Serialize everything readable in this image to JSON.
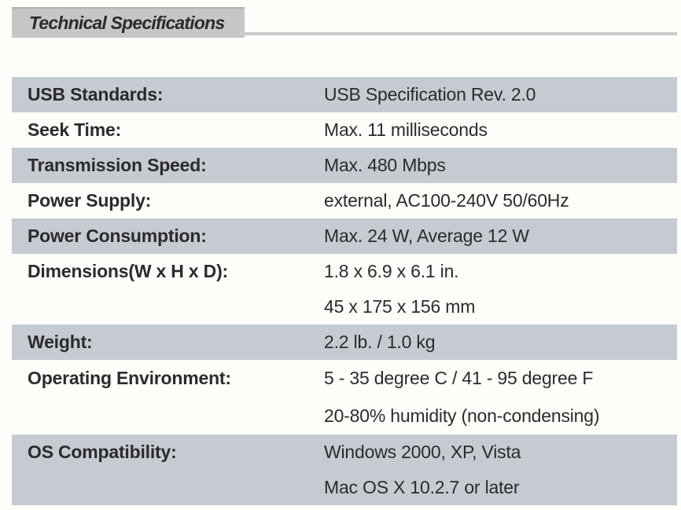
{
  "header": {
    "title": "Technical Specifications"
  },
  "table": {
    "rows": [
      {
        "label": "USB Standards:",
        "values": [
          "USB Specification Rev. 2.0"
        ]
      },
      {
        "label": "Seek Time:",
        "values": [
          "Max. 11 milliseconds"
        ]
      },
      {
        "label": "Transmission Speed:",
        "values": [
          "Max. 480 Mbps"
        ]
      },
      {
        "label": "Power Supply:",
        "values": [
          "external, AC100-240V 50/60Hz"
        ]
      },
      {
        "label": "Power Consumption:",
        "values": [
          "Max. 24 W, Average 12 W"
        ]
      },
      {
        "label": "Dimensions(W x H x D):",
        "values": [
          "1.8 x 6.9 x 6.1 in.",
          "45 x 175 x 156 mm"
        ]
      },
      {
        "label": "Weight:",
        "values": [
          "2.2 lb. / 1.0 kg"
        ]
      },
      {
        "label": "Operating Environment:",
        "values": [
          "5 - 35 degree C / 41 - 95 degree F",
          "20-80% humidity (non-condensing)"
        ]
      },
      {
        "label": "OS Compatibility:",
        "values": [
          "Windows 2000, XP, Vista",
          "Mac OS X 10.2.7 or later"
        ]
      }
    ]
  },
  "colors": {
    "row_shade": "#c6cad1",
    "title_box": "#c6c6c6",
    "rule": "#cacaca",
    "text": "#2b2b2b"
  }
}
